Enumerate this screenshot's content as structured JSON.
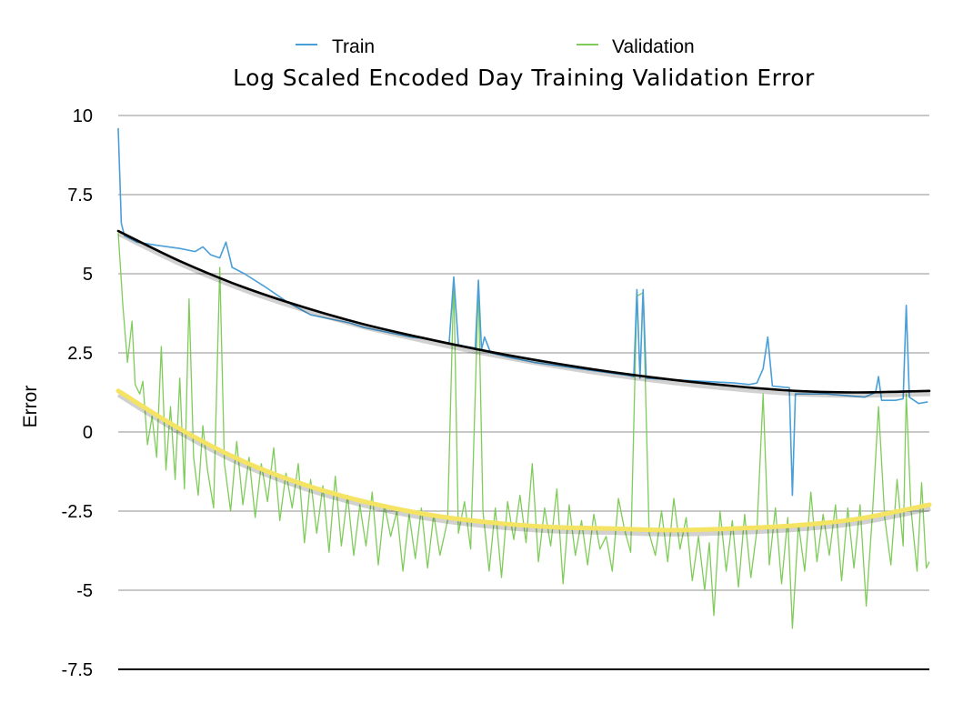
{
  "chart_data": {
    "type": "line",
    "title": "Log Scaled Encoded Day Training Validation Error",
    "xlabel": "",
    "ylabel": "Error",
    "ylim": [
      -7.5,
      10
    ],
    "yticks": [
      "10",
      "7.5",
      "5",
      "2.5",
      "0",
      "-2.5",
      "-5",
      "-7.5"
    ],
    "grid": true,
    "legend_position": "top",
    "series": [
      {
        "name": "Train",
        "color": "#4a9fd8",
        "points": [
          [
            0,
            9.6
          ],
          [
            2,
            6.6
          ],
          [
            4,
            6.2
          ],
          [
            12,
            6.0
          ],
          [
            25,
            5.9
          ],
          [
            40,
            5.8
          ],
          [
            50,
            5.7
          ],
          [
            55,
            5.85
          ],
          [
            60,
            5.6
          ],
          [
            66,
            5.5
          ],
          [
            70,
            6.0
          ],
          [
            74,
            5.2
          ],
          [
            82,
            5.0
          ],
          [
            95,
            4.6
          ],
          [
            110,
            4.1
          ],
          [
            125,
            3.7
          ],
          [
            140,
            3.55
          ],
          [
            150,
            3.45
          ],
          [
            160,
            3.3
          ],
          [
            175,
            3.15
          ],
          [
            190,
            3.0
          ],
          [
            200,
            2.95
          ],
          [
            210,
            2.85
          ],
          [
            215,
            2.8
          ],
          [
            218,
            4.9
          ],
          [
            221,
            2.75
          ],
          [
            232,
            2.65
          ],
          [
            234,
            4.8
          ],
          [
            236,
            2.6
          ],
          [
            238,
            3.0
          ],
          [
            242,
            2.5
          ],
          [
            255,
            2.35
          ],
          [
            270,
            2.2
          ],
          [
            285,
            2.1
          ],
          [
            300,
            2.0
          ],
          [
            315,
            1.9
          ],
          [
            330,
            1.8
          ],
          [
            335,
            1.75
          ],
          [
            337,
            4.5
          ],
          [
            339,
            1.7
          ],
          [
            341,
            4.5
          ],
          [
            343,
            1.7
          ],
          [
            360,
            1.65
          ],
          [
            380,
            1.6
          ],
          [
            400,
            1.55
          ],
          [
            410,
            1.5
          ],
          [
            415,
            1.55
          ],
          [
            419,
            2.0
          ],
          [
            422,
            3.0
          ],
          [
            425,
            1.45
          ],
          [
            436,
            1.4
          ],
          [
            438,
            -2.0
          ],
          [
            440,
            1.2
          ],
          [
            460,
            1.2
          ],
          [
            485,
            1.1
          ],
          [
            492,
            1.25
          ],
          [
            494,
            1.75
          ],
          [
            496,
            1.0
          ],
          [
            505,
            1.0
          ],
          [
            510,
            1.05
          ],
          [
            512,
            4.0
          ],
          [
            514,
            1.1
          ],
          [
            520,
            0.9
          ],
          [
            526,
            0.95
          ]
        ]
      },
      {
        "name": "Validation",
        "color": "#7fcc5a",
        "points": [
          [
            0,
            6.3
          ],
          [
            3,
            4.0
          ],
          [
            6,
            2.2
          ],
          [
            9,
            3.5
          ],
          [
            11,
            1.5
          ],
          [
            14,
            1.2
          ],
          [
            16,
            1.6
          ],
          [
            19,
            -0.4
          ],
          [
            22,
            0.5
          ],
          [
            25,
            -0.8
          ],
          [
            28,
            2.7
          ],
          [
            31,
            -1.2
          ],
          [
            34,
            0.8
          ],
          [
            37,
            -1.5
          ],
          [
            40,
            1.7
          ],
          [
            43,
            -1.8
          ],
          [
            46,
            4.2
          ],
          [
            49,
            -0.8
          ],
          [
            52,
            -2.0
          ],
          [
            55,
            0.2
          ],
          [
            58,
            -1.2
          ],
          [
            62,
            -2.4
          ],
          [
            66,
            5.2
          ],
          [
            69,
            -1.0
          ],
          [
            73,
            -2.5
          ],
          [
            77,
            -0.3
          ],
          [
            81,
            -2.3
          ],
          [
            85,
            -0.8
          ],
          [
            89,
            -2.7
          ],
          [
            93,
            -1.0
          ],
          [
            97,
            -2.2
          ],
          [
            101,
            -0.5
          ],
          [
            105,
            -2.8
          ],
          [
            109,
            -1.3
          ],
          [
            113,
            -2.4
          ],
          [
            117,
            -1.0
          ],
          [
            121,
            -3.5
          ],
          [
            125,
            -1.5
          ],
          [
            129,
            -3.2
          ],
          [
            133,
            -1.7
          ],
          [
            137,
            -3.8
          ],
          [
            141,
            -1.4
          ],
          [
            145,
            -3.6
          ],
          [
            149,
            -2.0
          ],
          [
            153,
            -3.9
          ],
          [
            157,
            -2.3
          ],
          [
            161,
            -3.6
          ],
          [
            165,
            -1.9
          ],
          [
            169,
            -4.2
          ],
          [
            173,
            -2.3
          ],
          [
            177,
            -3.3
          ],
          [
            181,
            -2.5
          ],
          [
            185,
            -4.4
          ],
          [
            189,
            -2.6
          ],
          [
            193,
            -4.0
          ],
          [
            197,
            -2.4
          ],
          [
            201,
            -4.3
          ],
          [
            205,
            -2.6
          ],
          [
            209,
            -3.9
          ],
          [
            214,
            -2.8
          ],
          [
            218,
            4.8
          ],
          [
            221,
            -3.2
          ],
          [
            225,
            -2.2
          ],
          [
            229,
            -3.7
          ],
          [
            234,
            4.6
          ],
          [
            237,
            -2.5
          ],
          [
            241,
            -4.4
          ],
          [
            245,
            -2.4
          ],
          [
            249,
            -4.6
          ],
          [
            253,
            -2.2
          ],
          [
            257,
            -3.4
          ],
          [
            261,
            -2.0
          ],
          [
            265,
            -3.5
          ],
          [
            269,
            -1.0
          ],
          [
            273,
            -4.1
          ],
          [
            277,
            -2.4
          ],
          [
            281,
            -3.6
          ],
          [
            285,
            -1.8
          ],
          [
            289,
            -4.8
          ],
          [
            293,
            -2.3
          ],
          [
            297,
            -3.9
          ],
          [
            301,
            -2.8
          ],
          [
            305,
            -4.2
          ],
          [
            309,
            -2.6
          ],
          [
            313,
            -3.7
          ],
          [
            317,
            -3.3
          ],
          [
            321,
            -4.4
          ],
          [
            325,
            -2.1
          ],
          [
            329,
            -3.1
          ],
          [
            333,
            -3.8
          ],
          [
            337,
            4.3
          ],
          [
            341,
            4.4
          ],
          [
            345,
            -3.2
          ],
          [
            349,
            -3.9
          ],
          [
            353,
            -2.5
          ],
          [
            357,
            -4.1
          ],
          [
            361,
            -2.1
          ],
          [
            365,
            -3.7
          ],
          [
            369,
            -2.7
          ],
          [
            373,
            -4.7
          ],
          [
            377,
            -3.3
          ],
          [
            381,
            -5.0
          ],
          [
            384,
            -3.5
          ],
          [
            387,
            -5.8
          ],
          [
            391,
            -2.5
          ],
          [
            395,
            -4.4
          ],
          [
            399,
            -2.8
          ],
          [
            403,
            -4.9
          ],
          [
            407,
            -2.6
          ],
          [
            411,
            -4.6
          ],
          [
            415,
            -3.1
          ],
          [
            419,
            1.2
          ],
          [
            423,
            -4.2
          ],
          [
            427,
            -2.4
          ],
          [
            431,
            -4.8
          ],
          [
            435,
            -2.7
          ],
          [
            438,
            -6.2
          ],
          [
            442,
            -2.9
          ],
          [
            446,
            -4.4
          ],
          [
            450,
            -1.9
          ],
          [
            454,
            -4.1
          ],
          [
            458,
            -2.6
          ],
          [
            462,
            -3.9
          ],
          [
            466,
            -2.3
          ],
          [
            470,
            -4.7
          ],
          [
            474,
            -2.4
          ],
          [
            478,
            -4.3
          ],
          [
            482,
            -2.3
          ],
          [
            486,
            -5.5
          ],
          [
            490,
            -2.6
          ],
          [
            494,
            0.8
          ],
          [
            498,
            -2.7
          ],
          [
            502,
            -4.2
          ],
          [
            506,
            -1.5
          ],
          [
            510,
            -3.6
          ],
          [
            512,
            1.2
          ],
          [
            515,
            -2.4
          ],
          [
            519,
            -4.4
          ],
          [
            522,
            -1.6
          ],
          [
            525,
            -4.3
          ],
          [
            527,
            -4.1
          ]
        ]
      }
    ],
    "trendlines": [
      {
        "color": "#000000",
        "points": [
          [
            0,
            6.35
          ],
          [
            40,
            5.4
          ],
          [
            80,
            4.6
          ],
          [
            120,
            3.95
          ],
          [
            160,
            3.4
          ],
          [
            200,
            2.95
          ],
          [
            240,
            2.55
          ],
          [
            280,
            2.2
          ],
          [
            320,
            1.9
          ],
          [
            360,
            1.65
          ],
          [
            400,
            1.45
          ],
          [
            440,
            1.3
          ],
          [
            480,
            1.25
          ],
          [
            527,
            1.3
          ]
        ]
      },
      {
        "color": "#f5e463",
        "points": [
          [
            0,
            1.3
          ],
          [
            40,
            0.1
          ],
          [
            80,
            -0.9
          ],
          [
            120,
            -1.65
          ],
          [
            160,
            -2.2
          ],
          [
            200,
            -2.6
          ],
          [
            240,
            -2.85
          ],
          [
            280,
            -3.0
          ],
          [
            320,
            -3.05
          ],
          [
            360,
            -3.1
          ],
          [
            400,
            -3.05
          ],
          [
            440,
            -2.95
          ],
          [
            480,
            -2.75
          ],
          [
            527,
            -2.3
          ]
        ]
      }
    ]
  }
}
